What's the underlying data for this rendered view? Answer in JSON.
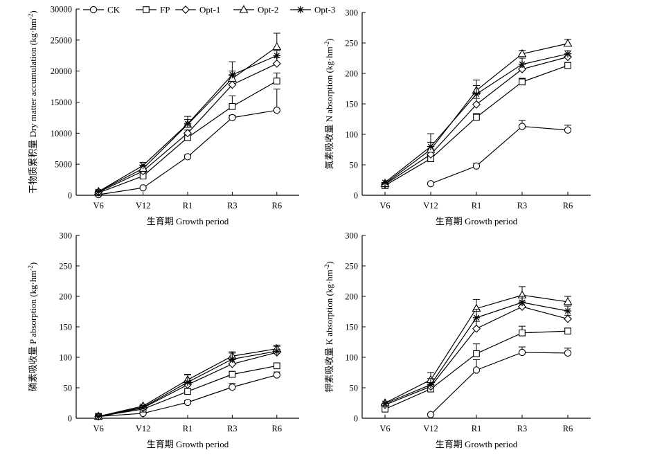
{
  "legend": [
    {
      "name": "CK",
      "marker": "circle"
    },
    {
      "name": "FP",
      "marker": "square"
    },
    {
      "name": "Opt-1",
      "marker": "diamond"
    },
    {
      "name": "Opt-2",
      "marker": "triangle"
    },
    {
      "name": "Opt-3",
      "marker": "star"
    }
  ],
  "chart_data": [
    {
      "type": "line",
      "categories": [
        "V6",
        "V12",
        "R1",
        "R3",
        "R6"
      ],
      "xlabel": "生育期 Growth period",
      "ylabel_cn": "干物质累积量",
      "ylabel_en": "Dry matter accumulation (kg·hm",
      "ylabel_sup": "-2",
      "ylabel_tail": ")",
      "ylim": [
        0,
        30000
      ],
      "yticks": [
        0,
        5000,
        10000,
        15000,
        20000,
        25000,
        30000
      ],
      "series": [
        {
          "name": "CK",
          "values": [
            100,
            1200,
            6200,
            12500,
            13700
          ],
          "err": [
            0,
            0,
            300,
            400,
            3400
          ]
        },
        {
          "name": "FP",
          "values": [
            400,
            3100,
            9300,
            14300,
            18400
          ],
          "err": [
            0,
            300,
            400,
            1700,
            1300
          ]
        },
        {
          "name": "Opt-1",
          "values": [
            500,
            3900,
            10000,
            17800,
            21200
          ],
          "err": [
            0,
            300,
            500,
            1500,
            1000
          ]
        },
        {
          "name": "Opt-2",
          "values": [
            600,
            4300,
            11400,
            18800,
            23900
          ],
          "err": [
            0,
            400,
            800,
            1200,
            2200
          ]
        },
        {
          "name": "Opt-3",
          "values": [
            600,
            4800,
            11500,
            19400,
            22500
          ],
          "err": [
            0,
            500,
            1200,
            2100,
            800
          ]
        }
      ]
    },
    {
      "type": "line",
      "categories": [
        "V6",
        "V12",
        "R1",
        "R3",
        "R6"
      ],
      "xlabel": "生育期 Growth period",
      "ylabel_cn": "氮素吸收量",
      "ylabel_en": "N absorption (kg·hm",
      "ylabel_sup": "-2",
      "ylabel_tail": ")",
      "ylim": [
        0,
        300
      ],
      "yticks": [
        0,
        50,
        100,
        150,
        200,
        250,
        300
      ],
      "series": [
        {
          "name": "CK",
          "values": [
            null,
            19,
            48,
            113,
            107
          ],
          "err": [
            0,
            0,
            4,
            10,
            8
          ]
        },
        {
          "name": "FP",
          "values": [
            16,
            60,
            128,
            186,
            213
          ],
          "err": [
            0,
            5,
            6,
            6,
            5
          ]
        },
        {
          "name": "Opt-1",
          "values": [
            18,
            67,
            149,
            207,
            227
          ],
          "err": [
            0,
            8,
            10,
            8,
            5
          ]
        },
        {
          "name": "Opt-2",
          "values": [
            19,
            75,
            172,
            232,
            249
          ],
          "err": [
            0,
            12,
            8,
            6,
            7
          ]
        },
        {
          "name": "Opt-3",
          "values": [
            21,
            80,
            166,
            215,
            232
          ],
          "err": [
            0,
            21,
            23,
            10,
            5
          ]
        }
      ]
    },
    {
      "type": "line",
      "categories": [
        "V6",
        "V12",
        "R1",
        "R3",
        "R6"
      ],
      "xlabel": "生育期 Growth period",
      "ylabel_cn": "磷素吸收量",
      "ylabel_en": "P absorption (kg·hm",
      "ylabel_sup": "-2",
      "ylabel_tail": ")",
      "ylim": [
        0,
        300
      ],
      "yticks": [
        0,
        50,
        100,
        150,
        200,
        250,
        300
      ],
      "series": [
        {
          "name": "CK",
          "values": [
            3,
            8,
            26,
            51,
            71
          ],
          "err": [
            0,
            0,
            3,
            6,
            5
          ]
        },
        {
          "name": "FP",
          "values": [
            3,
            15,
            44,
            72,
            86
          ],
          "err": [
            0,
            2,
            5,
            5,
            4
          ]
        },
        {
          "name": "Opt-1",
          "values": [
            3,
            17,
            55,
            89,
            108
          ],
          "err": [
            0,
            3,
            6,
            7,
            5
          ]
        },
        {
          "name": "Opt-2",
          "values": [
            3,
            20,
            63,
            102,
            114
          ],
          "err": [
            0,
            3,
            8,
            7,
            6
          ]
        },
        {
          "name": "Opt-3",
          "values": [
            3,
            18,
            59,
            97,
            110
          ],
          "err": [
            0,
            3,
            13,
            10,
            8
          ]
        }
      ]
    },
    {
      "type": "line",
      "categories": [
        "V6",
        "V12",
        "R1",
        "R3",
        "R6"
      ],
      "xlabel": "生育期 Growth period",
      "ylabel_cn": "钾素吸收量",
      "ylabel_en": "K absorption (kg·hm",
      "ylabel_sup": "-2",
      "ylabel_tail": ")",
      "ylim": [
        0,
        300
      ],
      "yticks": [
        0,
        50,
        100,
        150,
        200,
        250,
        300
      ],
      "series": [
        {
          "name": "CK",
          "values": [
            null,
            6,
            79,
            108,
            107
          ],
          "err": [
            0,
            0,
            17,
            9,
            8
          ]
        },
        {
          "name": "FP",
          "values": [
            15,
            48,
            106,
            140,
            143
          ],
          "err": [
            0,
            4,
            16,
            11,
            5
          ]
        },
        {
          "name": "Opt-1",
          "values": [
            22,
            52,
            147,
            183,
            163
          ],
          "err": [
            0,
            6,
            12,
            9,
            6
          ]
        },
        {
          "name": "Opt-2",
          "values": [
            25,
            63,
            180,
            202,
            191
          ],
          "err": [
            0,
            12,
            15,
            14,
            9
          ]
        },
        {
          "name": "Opt-3",
          "values": [
            24,
            55,
            165,
            190,
            176
          ],
          "err": [
            0,
            10,
            14,
            10,
            8
          ]
        }
      ]
    }
  ]
}
